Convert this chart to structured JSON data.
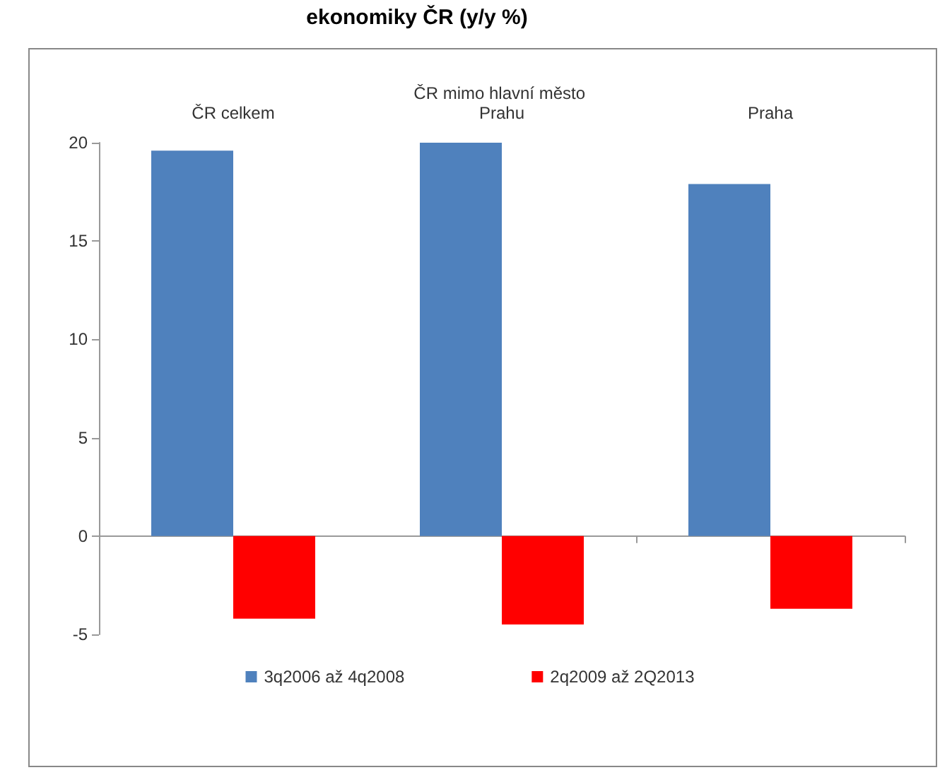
{
  "chart_data": {
    "type": "bar",
    "title": "ekonomiky ČR (y/y %)",
    "categories": [
      "ČR celkem",
      "ČR mimo hlavní město Prahu",
      "Praha"
    ],
    "series": [
      {
        "name": "3q2006 až 4q2008",
        "color": "#4f81bd",
        "values": [
          19.6,
          20.0,
          17.9
        ]
      },
      {
        "name": "2q2009 až 2Q2013",
        "color": "#ff0000",
        "values": [
          -4.2,
          -4.5,
          -3.7
        ]
      }
    ],
    "ylim": [
      -5,
      20
    ],
    "yticks": [
      -5,
      0,
      5,
      10,
      15,
      20
    ],
    "legend": "bottom"
  }
}
